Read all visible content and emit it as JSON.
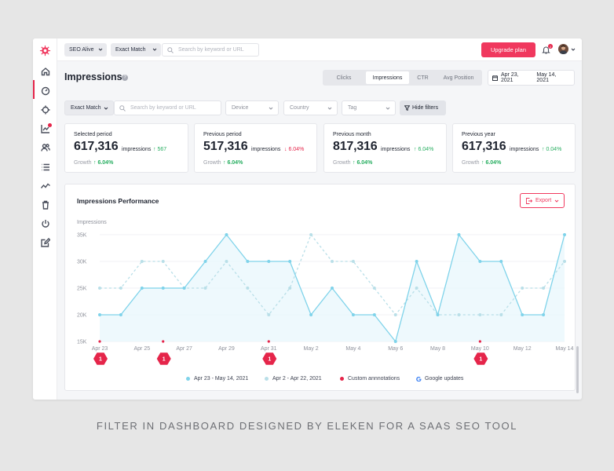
{
  "topbar": {
    "project_select": "SEO Alive",
    "match_select": "Exact Match",
    "search_placeholder": "Search by keyword or URL",
    "upgrade_label": "Upgrade plan",
    "notification_count": "2"
  },
  "sidebar": {
    "icons": [
      "home-icon",
      "dashboard-icon",
      "target-icon",
      "chart-icon",
      "users-icon",
      "list-icon",
      "trend-icon",
      "trash-icon",
      "power-icon",
      "edit-icon"
    ]
  },
  "header": {
    "title": "Impressions",
    "help": "?",
    "tabs": [
      {
        "label": "Clicks",
        "active": false
      },
      {
        "label": "Impressions",
        "active": true
      },
      {
        "label": "CTR",
        "active": false
      },
      {
        "label": "Avg Position",
        "active": false
      }
    ],
    "date_from": "Apr 23, 2021",
    "date_to": "May 14, 2021"
  },
  "filters": {
    "match_select": "Exact Match",
    "search_placeholder": "Search by keyword or URL",
    "device": "Device",
    "country": "Country",
    "tag": "Tag",
    "hide_filters": "Hide filters"
  },
  "stats": [
    {
      "label": "Selected period",
      "value": "617,316",
      "unit": "impressions",
      "delta": "567",
      "delta_dir": "up",
      "growth_label": "Growth",
      "growth": "6.04%"
    },
    {
      "label": "Previous period",
      "value": "517,316",
      "unit": "impressions",
      "delta": "6.04%",
      "delta_dir": "down",
      "growth_label": "Growth",
      "growth": "6.04%"
    },
    {
      "label": "Previous month",
      "value": "817,316",
      "unit": "impressions",
      "delta": "6.04%",
      "delta_dir": "up",
      "growth_label": "Growth",
      "growth": "6.04%"
    },
    {
      "label": "Previous year",
      "value": "617,316",
      "unit": "impressions",
      "delta": "0.04%",
      "delta_dir": "up",
      "growth_label": "Growth",
      "growth": "6.04%"
    }
  ],
  "chart_card": {
    "title": "Impressions Performance",
    "export_label": "Export",
    "legend": [
      {
        "label": "Apr 23 - May 14, 2021",
        "color": "#7fd3ea"
      },
      {
        "label": "Apr 2 - Apr 22, 2021",
        "color": "#b9dfe8"
      },
      {
        "label": "Custom annnotations",
        "color": "#e5254a"
      },
      {
        "label": "Google updates",
        "color": "#4285f4"
      }
    ]
  },
  "chart_data": {
    "type": "line",
    "ylabel": "Impressions",
    "ylim": [
      15000,
      35000
    ],
    "yticks": [
      "35K",
      "30K",
      "25K",
      "20K",
      "15K"
    ],
    "x_tick_labels": [
      "Apr 23",
      "Apr 25",
      "Apr 27",
      "Apr 29",
      "Apr 31",
      "May 2",
      "May 4",
      "May 6",
      "May 8",
      "May 10",
      "May 12",
      "May 14"
    ],
    "x": [
      "Apr 23",
      "Apr 24",
      "Apr 25",
      "Apr 26",
      "Apr 27",
      "Apr 28",
      "Apr 29",
      "Apr 30",
      "Apr 31",
      "May 1",
      "May 2",
      "May 3",
      "May 4",
      "May 5",
      "May 6",
      "May 7",
      "May 8",
      "May 9",
      "May 10",
      "May 11",
      "May 12",
      "May 13",
      "May 14"
    ],
    "series": [
      {
        "name": "Apr 23 - May 14, 2021",
        "style": "solid",
        "color": "#7fd3ea",
        "values": [
          20000,
          20000,
          25000,
          25000,
          25000,
          30000,
          35000,
          30000,
          30000,
          30000,
          20000,
          25000,
          20000,
          20000,
          15000,
          30000,
          20000,
          35000,
          30000,
          30000,
          20000,
          20000,
          35000
        ]
      },
      {
        "name": "Apr 2 - Apr 22, 2021",
        "style": "dashed",
        "color": "#b9dfe8",
        "values": [
          25000,
          25000,
          30000,
          30000,
          25000,
          25000,
          30000,
          25000,
          20000,
          25000,
          35000,
          30000,
          30000,
          25000,
          20000,
          25000,
          20000,
          20000,
          20000,
          20000,
          25000,
          25000,
          30000
        ]
      }
    ],
    "annotation_x": [
      "Apr 23",
      "Apr 26",
      "Apr 31",
      "May 10"
    ],
    "annotation_counts": [
      "1",
      "1",
      "1",
      "1"
    ],
    "grid": true
  },
  "caption": "FILTER IN DASHBOARD DESIGNED BY ELEKEN FOR A SAAS SEO TOOL"
}
